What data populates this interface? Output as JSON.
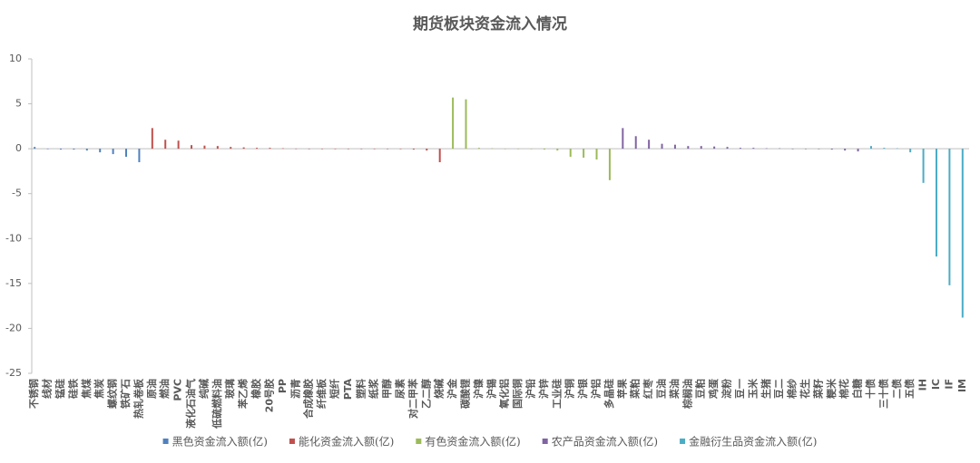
{
  "chart_data": {
    "type": "bar",
    "title": "期货板块资金流入情况",
    "categories": [
      "不锈钢",
      "线材",
      "锰硅",
      "硅铁",
      "焦煤",
      "焦炭",
      "螺纹钢",
      "铁矿石",
      "热轧卷板",
      "原油",
      "燃油",
      "PVC",
      "液化石油气",
      "纯碱",
      "低硫燃料油",
      "玻璃",
      "苯乙烯",
      "橡胶",
      "20号胶",
      "PP",
      "沥青",
      "合成橡胶",
      "纤维板",
      "短纤",
      "PTA",
      "塑料",
      "纸浆",
      "甲醇",
      "尿素",
      "对二甲苯",
      "乙二醇",
      "烧碱",
      "沪金",
      "碳酸锂",
      "沪镍",
      "沪锡",
      "氧化铝",
      "国际铜",
      "沪铅",
      "沪锌",
      "工业硅",
      "沪铜",
      "沪银",
      "沪铝",
      "多晶硅",
      "苹果",
      "菜粕",
      "红枣",
      "豆油",
      "菜油",
      "棕榈油",
      "豆粕",
      "鸡蛋",
      "淀粉",
      "豆一",
      "玉米",
      "生猪",
      "豆二",
      "棉纱",
      "花生",
      "菜籽",
      "粳米",
      "棉花",
      "白糖",
      "十债",
      "三十债",
      "二债",
      "五债",
      "IH",
      "IC",
      "IF",
      "IM"
    ],
    "series": [
      {
        "name": "黑色资金流入额(亿)",
        "color": "#4f81bd",
        "values": [
          0.2,
          0,
          -0.1,
          -0.1,
          -0.2,
          -0.4,
          -0.6,
          -0.9,
          -1.5,
          null,
          null,
          null,
          null,
          null,
          null,
          null,
          null,
          null,
          null,
          null,
          null,
          null,
          null,
          null,
          null,
          null,
          null,
          null,
          null,
          null,
          null,
          null,
          null,
          null,
          null,
          null,
          null,
          null,
          null,
          null,
          null,
          null,
          null,
          null,
          null,
          null,
          null,
          null,
          null,
          null,
          null,
          null,
          null,
          null,
          null,
          null,
          null,
          null,
          null,
          null,
          null,
          null,
          null,
          null,
          null,
          null,
          null,
          null,
          null,
          null,
          null,
          null
        ]
      },
      {
        "name": "能化资金流入额(亿)",
        "color": "#c0504d",
        "values": [
          null,
          null,
          null,
          null,
          null,
          null,
          null,
          null,
          null,
          2.3,
          1.0,
          0.9,
          0.4,
          0.35,
          0.3,
          0.2,
          0.15,
          0.1,
          0.1,
          0.05,
          0.02,
          0,
          0,
          0,
          0,
          0,
          0,
          -0.05,
          -0.05,
          -0.1,
          -0.2,
          -1.5,
          null,
          null,
          null,
          null,
          null,
          null,
          null,
          null,
          null,
          null,
          null,
          null,
          null,
          null,
          null,
          null,
          null,
          null,
          null,
          null,
          null,
          null,
          null,
          null,
          null,
          null,
          null,
          null,
          null,
          null,
          null,
          null,
          null,
          null,
          null,
          null,
          null,
          null,
          null,
          null
        ]
      },
      {
        "name": "有色资金流入额(亿)",
        "color": "#9bbb59",
        "values": [
          null,
          null,
          null,
          null,
          null,
          null,
          null,
          null,
          null,
          null,
          null,
          null,
          null,
          null,
          null,
          null,
          null,
          null,
          null,
          null,
          null,
          null,
          null,
          null,
          null,
          null,
          null,
          null,
          null,
          null,
          null,
          null,
          5.7,
          5.5,
          0.1,
          0.05,
          0,
          0,
          -0.05,
          -0.1,
          -0.2,
          -0.9,
          -1.0,
          -1.2,
          -3.5,
          null,
          null,
          null,
          null,
          null,
          null,
          null,
          null,
          null,
          null,
          null,
          null,
          null,
          null,
          null,
          null,
          null,
          null,
          null,
          null,
          null,
          null,
          null,
          null,
          null,
          null,
          null
        ]
      },
      {
        "name": "农产品资金流入额(亿)",
        "color": "#8064a2",
        "values": [
          null,
          null,
          null,
          null,
          null,
          null,
          null,
          null,
          null,
          null,
          null,
          null,
          null,
          null,
          null,
          null,
          null,
          null,
          null,
          null,
          null,
          null,
          null,
          null,
          null,
          null,
          null,
          null,
          null,
          null,
          null,
          null,
          null,
          null,
          null,
          null,
          null,
          null,
          null,
          null,
          null,
          null,
          null,
          null,
          null,
          2.3,
          1.4,
          1.0,
          0.55,
          0.45,
          0.3,
          0.3,
          0.25,
          0.2,
          0.1,
          0.1,
          0.05,
          0.05,
          0,
          0,
          -0.05,
          -0.1,
          -0.2,
          -0.3,
          null,
          null,
          null,
          null,
          null,
          null,
          null,
          null
        ]
      },
      {
        "name": "金融衍生品资金流入额(亿)",
        "color": "#4bacc6",
        "values": [
          null,
          null,
          null,
          null,
          null,
          null,
          null,
          null,
          null,
          null,
          null,
          null,
          null,
          null,
          null,
          null,
          null,
          null,
          null,
          null,
          null,
          null,
          null,
          null,
          null,
          null,
          null,
          null,
          null,
          null,
          null,
          null,
          null,
          null,
          null,
          null,
          null,
          null,
          null,
          null,
          null,
          null,
          null,
          null,
          null,
          null,
          null,
          null,
          null,
          null,
          null,
          null,
          null,
          null,
          null,
          null,
          null,
          null,
          null,
          null,
          null,
          null,
          null,
          null,
          0.3,
          0.1,
          0.05,
          -0.4,
          -3.8,
          -12,
          -15.2,
          -18.8
        ]
      }
    ],
    "ylim": [
      -25,
      10
    ],
    "yticks": [
      -25,
      -20,
      -15,
      -10,
      -5,
      0,
      5,
      10
    ],
    "legend": "bottom"
  }
}
